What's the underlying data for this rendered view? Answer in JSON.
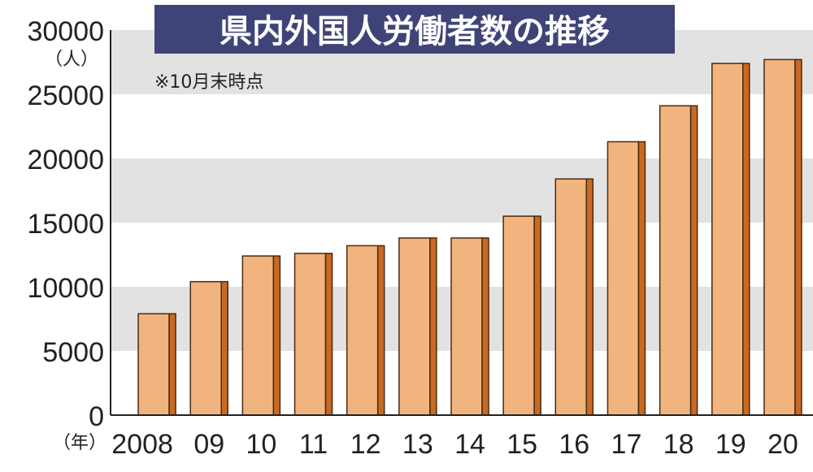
{
  "chart_data": {
    "type": "bar",
    "title": "県内外国人労働者数の推移",
    "note": "※10月末時点",
    "y_unit": "（人）",
    "x_unit": "（年）",
    "categories": [
      "2008",
      "09",
      "10",
      "11",
      "12",
      "13",
      "14",
      "15",
      "16",
      "17",
      "18",
      "19",
      "20"
    ],
    "values": [
      7900,
      10400,
      12400,
      12600,
      13200,
      13800,
      13800,
      15500,
      18400,
      21300,
      24100,
      27400,
      27700
    ],
    "yticks": [
      "0",
      "5000",
      "10000",
      "15000",
      "20000",
      "25000",
      "30000"
    ],
    "ylim": [
      0,
      30000
    ],
    "grid": "alternating horizontal bands",
    "colors": {
      "bar_front": "#f1b47f",
      "bar_side": "#c96a23",
      "bar_outline": "#4a2a10",
      "band": "#e2e2e2",
      "title_bg": "#3f4478",
      "title_text": "#ffffff",
      "axis": "#222222"
    }
  }
}
